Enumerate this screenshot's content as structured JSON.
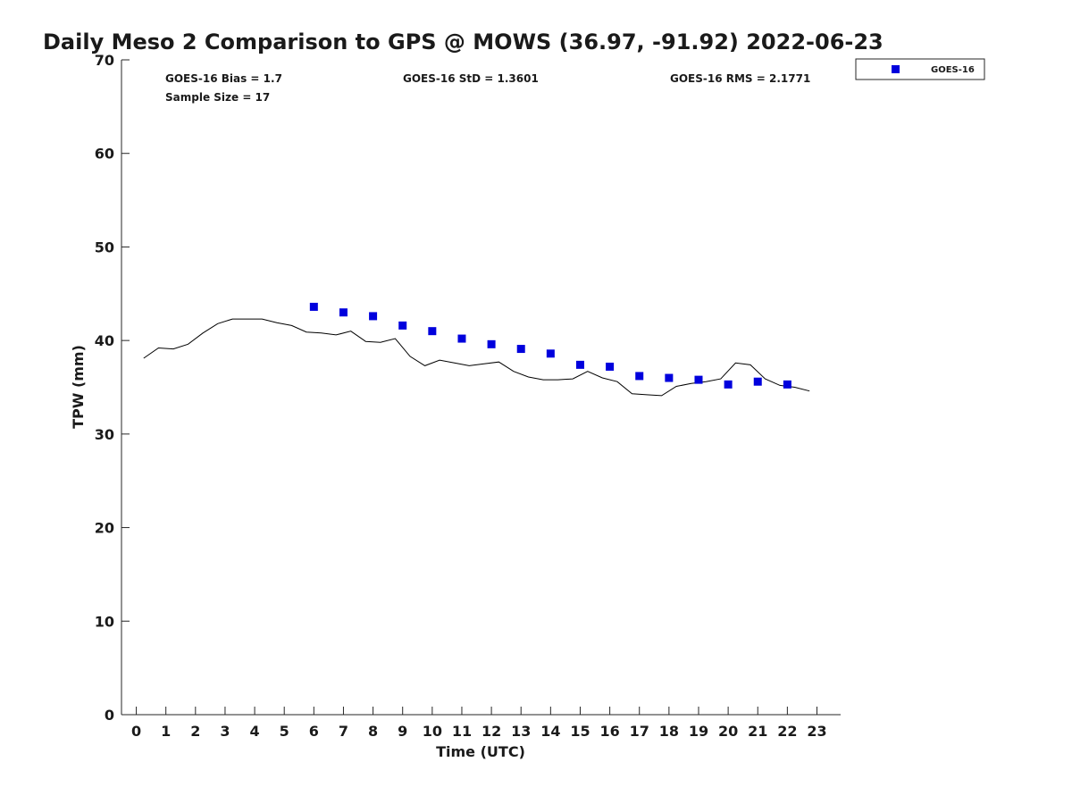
{
  "chart_data": {
    "type": "scatter",
    "title": "Daily Meso 2 Comparison to GPS @ MOWS (36.97, -91.92) 2022-06-23",
    "xlabel": "Time (UTC)",
    "ylabel": "TPW (mm)",
    "xlim": [
      -0.5,
      23.8
    ],
    "ylim": [
      0,
      70
    ],
    "xticks": [
      0,
      1,
      2,
      3,
      4,
      5,
      6,
      7,
      8,
      9,
      10,
      11,
      12,
      13,
      14,
      15,
      16,
      17,
      18,
      19,
      20,
      21,
      22,
      23
    ],
    "yticks": [
      0,
      10,
      20,
      30,
      40,
      50,
      60,
      70
    ],
    "grid": false,
    "legend_position": "top-right, outside plot",
    "stats": {
      "bias": "GOES-16 Bias = 1.7",
      "std": "GOES-16 StD = 1.3601",
      "rms": "GOES-16 RMS = 2.1771",
      "sample": "Sample Size = 17"
    },
    "series": [
      {
        "name": "GOES-16",
        "marker": "square",
        "color": "#0000dd",
        "x": [
          6,
          7,
          8,
          9,
          10,
          11,
          12,
          13,
          14,
          15,
          16,
          17,
          18,
          19,
          20,
          21,
          22
        ],
        "y": [
          43.6,
          43.0,
          42.6,
          41.6,
          41.0,
          40.2,
          39.6,
          39.1,
          38.6,
          37.4,
          37.2,
          36.2,
          36.0,
          35.8,
          35.3,
          35.6,
          35.3
        ]
      },
      {
        "marker": "line",
        "color": "#000000",
        "x": [
          0.25,
          0.75,
          1.25,
          1.75,
          2.25,
          2.75,
          3.25,
          3.75,
          4.25,
          4.75,
          5.25,
          5.75,
          6.25,
          6.75,
          7.25,
          7.75,
          8.25,
          8.75,
          9.25,
          9.75,
          10.25,
          10.75,
          11.25,
          11.75,
          12.25,
          12.75,
          13.25,
          13.75,
          14.25,
          14.75,
          15.25,
          15.75,
          16.25,
          16.75,
          17.25,
          17.75,
          18.25,
          18.75,
          19.25,
          19.75,
          20.25,
          20.75,
          21.25,
          21.75,
          22.25,
          22.75
        ],
        "y": [
          38.1,
          39.2,
          39.1,
          39.6,
          40.8,
          41.8,
          42.3,
          42.3,
          42.3,
          41.9,
          41.6,
          40.9,
          40.8,
          40.6,
          41.0,
          39.9,
          39.8,
          40.2,
          38.3,
          37.3,
          37.9,
          37.6,
          37.3,
          37.5,
          37.7,
          36.7,
          36.1,
          35.8,
          35.8,
          35.9,
          36.7,
          36.0,
          35.6,
          34.3,
          34.2,
          34.1,
          35.1,
          35.4,
          35.6,
          35.9,
          37.6,
          37.4,
          35.9,
          35.2,
          35.0,
          34.6
        ]
      }
    ]
  }
}
